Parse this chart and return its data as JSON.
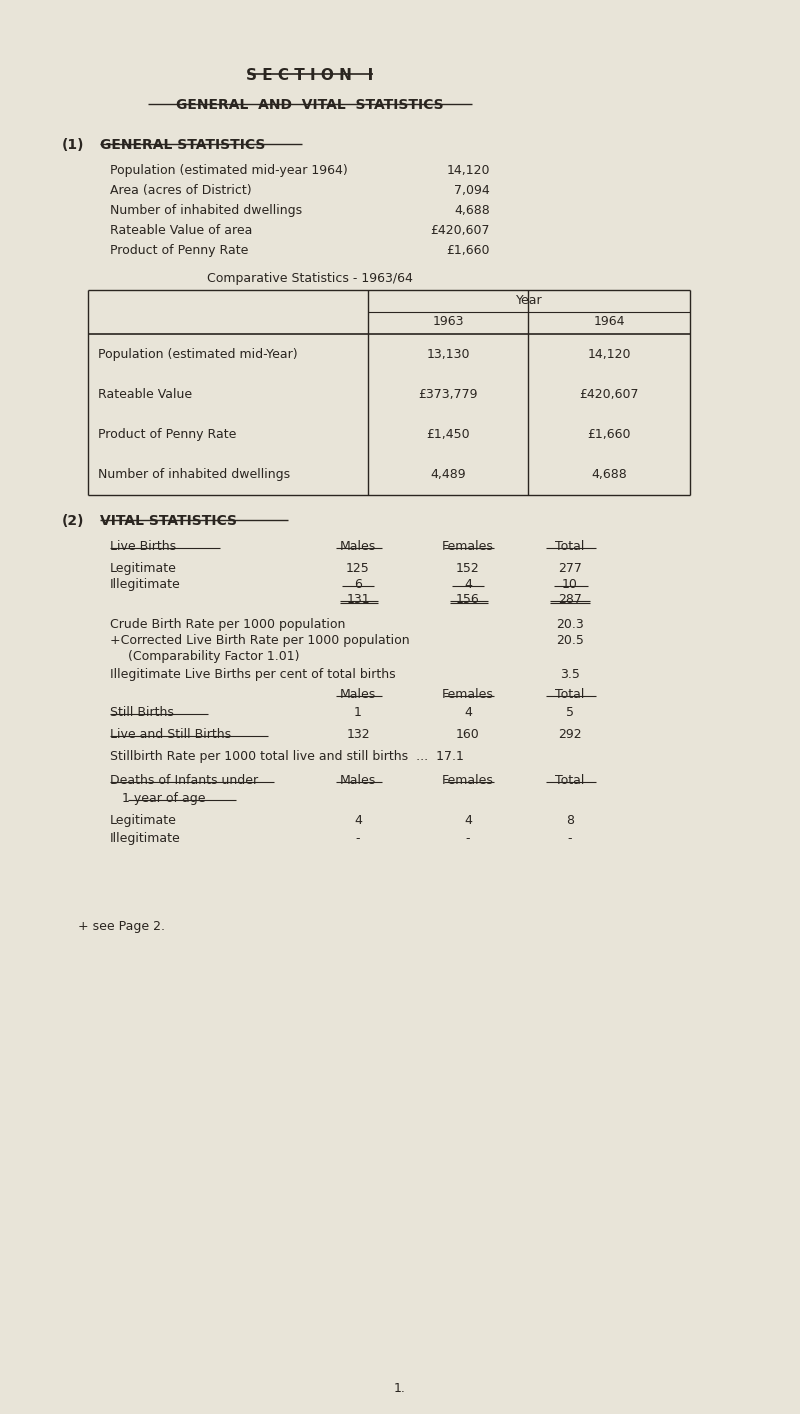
{
  "bg_color": "#e8e4d8",
  "text_color": "#2a2520",
  "page_title": "S E C T I O N   I",
  "section_title": "GENERAL  AND  VITAL  STATISTICS",
  "section1_heading_num": "(1)",
  "section1_heading_txt": "GENERAL STATISTICS",
  "general_stats": [
    [
      "Population (estimated mid-year 1964)",
      "14,120"
    ],
    [
      "Area (acres of District)",
      "7,094"
    ],
    [
      "Number of inhabited dwellings",
      "4,688"
    ],
    [
      "Rateable Value of area",
      "£420,607"
    ],
    [
      "Product of Penny Rate",
      "£1,660"
    ]
  ],
  "comp_stats_title": "Comparative Statistics - 1963/64",
  "comp_table_rows": [
    [
      "Population (estimated mid-Year)",
      "13,130",
      "14,120"
    ],
    [
      "Rateable Value",
      "£373,779",
      "£420,607"
    ],
    [
      "Product of Penny Rate",
      "£1,450",
      "£1,660"
    ],
    [
      "Number of inhabited dwellings",
      "4,489",
      "4,688"
    ]
  ],
  "section2_heading_num": "(2)",
  "section2_heading_txt": "VITAL STATISTICS",
  "live_births_rows": [
    [
      "Legitimate",
      "125",
      "152",
      "277"
    ],
    [
      "Illegitimate",
      "6",
      "4",
      "10"
    ]
  ],
  "live_births_totals": [
    "131",
    "156",
    "287"
  ],
  "crude_birth_rate_val": "20.3",
  "corrected_birth_rate_val": "20.5",
  "illegitimate_rate_val": "3.5",
  "still_births_values": [
    "1",
    "4",
    "5"
  ],
  "live_still_births_values": [
    "132",
    "160",
    "292"
  ],
  "stillbirth_rate_val": "17.1",
  "infant_deaths_rows": [
    [
      "Legitimate",
      "4",
      "4",
      "8"
    ],
    [
      "Illegitimate",
      "-",
      "-",
      "-"
    ]
  ],
  "footer_note": "+ see Page 2.",
  "page_number": "1."
}
